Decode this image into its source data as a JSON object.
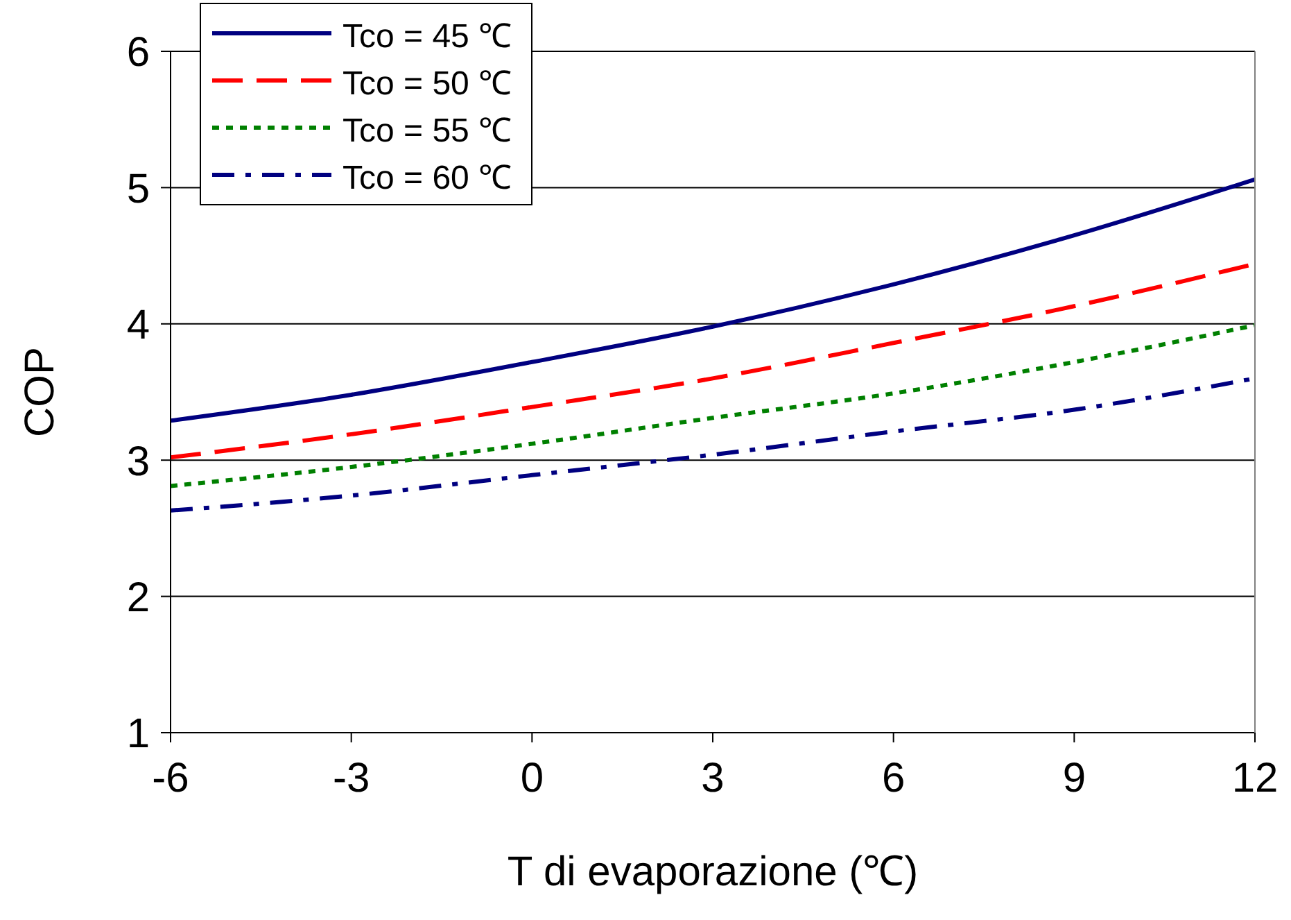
{
  "chart_data": {
    "type": "line",
    "xlabel": "T di evaporazione (℃)",
    "ylabel": "COP",
    "x": [
      -6,
      -3,
      0,
      3,
      6,
      9,
      12
    ],
    "xlim": [
      -6,
      12
    ],
    "xticks": [
      -6,
      -3,
      0,
      3,
      6,
      9,
      12
    ],
    "ylim": [
      1,
      6
    ],
    "yticks": [
      1,
      2,
      3,
      4,
      5,
      6
    ],
    "grid": "y",
    "legend": "top left",
    "marker": "none",
    "series": [
      {
        "name": "Tco = 45 ℃",
        "color": "#000080",
        "line_style": "solid",
        "values": [
          3.29,
          3.48,
          3.72,
          3.98,
          4.29,
          4.65,
          5.06
        ]
      },
      {
        "name": "Tco = 50 ℃",
        "color": "#ff0000",
        "line_style": "dashed",
        "values": [
          3.02,
          3.19,
          3.39,
          3.6,
          3.86,
          4.13,
          4.44
        ]
      },
      {
        "name": "Tco = 55 ℃",
        "color": "#008000",
        "line_style": "dotted",
        "values": [
          2.81,
          2.95,
          3.12,
          3.31,
          3.49,
          3.72,
          3.99
        ]
      },
      {
        "name": "Tco = 60 ℃",
        "color": "#000080",
        "line_style": "dashdot",
        "values": [
          2.63,
          2.74,
          2.89,
          3.04,
          3.21,
          3.37,
          3.6
        ]
      }
    ]
  }
}
